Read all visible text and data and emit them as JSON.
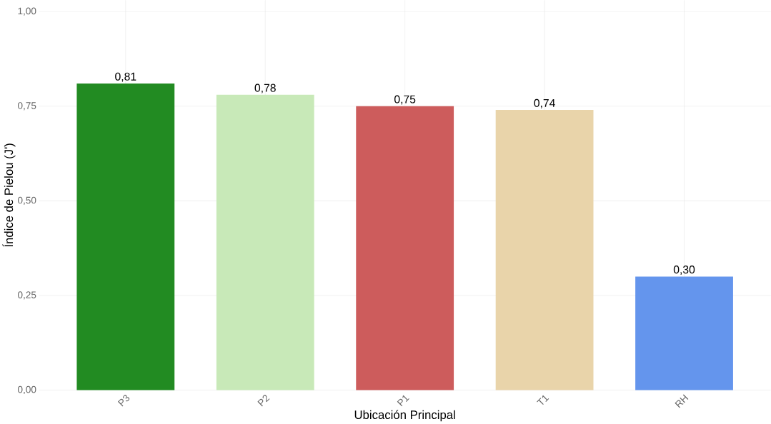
{
  "chart_data": {
    "type": "bar",
    "xlabel": "Ubicación Principal",
    "ylabel": "Índice de Pielou (J')",
    "categories": [
      "P3",
      "P2",
      "P1",
      "T1",
      "RH"
    ],
    "values": [
      0.81,
      0.78,
      0.75,
      0.74,
      0.3
    ],
    "colors": [
      "#228b22",
      "#c8e9b8",
      "#cd5c5c",
      "#e9d4aa",
      "#6495ed"
    ],
    "value_labels": [
      "0,81",
      "0,78",
      "0,75",
      "0,74",
      "0,30"
    ],
    "ylim": [
      0,
      1.03
    ],
    "yticks": [
      {
        "value": 0,
        "label": "0,00"
      },
      {
        "value": 0.25,
        "label": "0,25"
      },
      {
        "value": 0.5,
        "label": "0,50"
      },
      {
        "value": 0.75,
        "label": "0,75"
      },
      {
        "value": 1,
        "label": "1,00"
      }
    ],
    "grid": true
  }
}
